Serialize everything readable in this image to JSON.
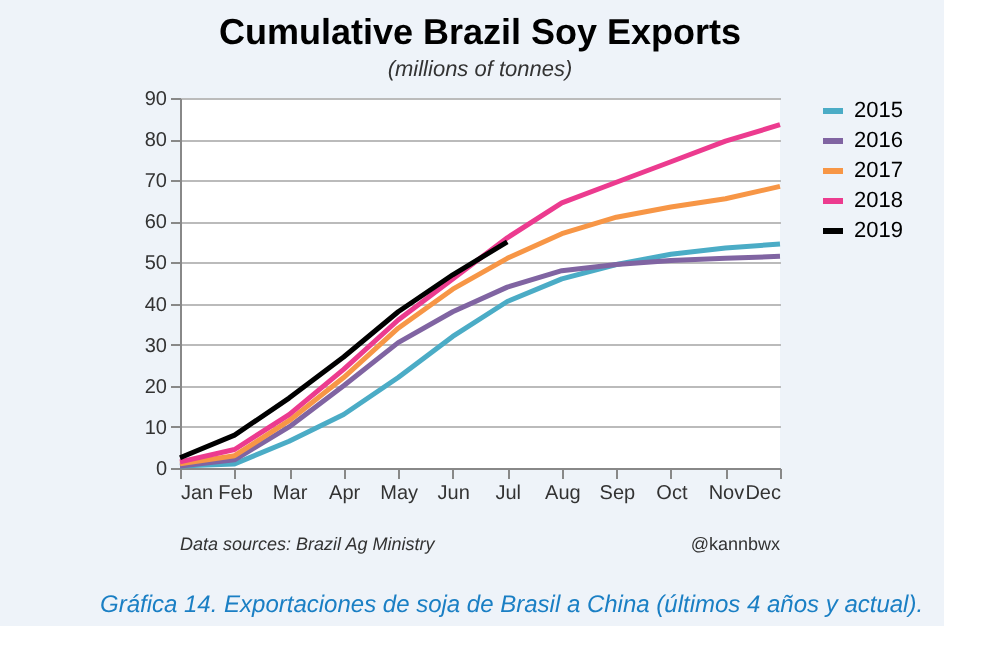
{
  "chart_data": {
    "type": "line",
    "title": "Cumulative Brazil Soy Exports",
    "subtitle": "(millions of tonnes)",
    "categories": [
      "Jan",
      "Feb",
      "Mar",
      "Apr",
      "May",
      "Jun",
      "Jul",
      "Aug",
      "Sep",
      "Oct",
      "Nov",
      "Dec"
    ],
    "series": [
      {
        "name": "2015",
        "color": "#4bacc6",
        "values": [
          0.5,
          1,
          6.5,
          13,
          22,
          32,
          40.5,
          46,
          49.5,
          52,
          53.5,
          54.5
        ]
      },
      {
        "name": "2016",
        "color": "#8064a2",
        "values": [
          0.5,
          2,
          10,
          20,
          30.5,
          38,
          44,
          48,
          49.5,
          50.5,
          51,
          51.5
        ]
      },
      {
        "name": "2017",
        "color": "#f79646",
        "values": [
          1,
          3,
          11.5,
          22,
          34,
          43.5,
          51,
          57,
          61,
          63.5,
          65.5,
          68.5
        ]
      },
      {
        "name": "2018",
        "color": "#ec3b8f",
        "values": [
          1.5,
          4.5,
          13,
          24,
          36,
          46,
          56,
          64.5,
          69.5,
          74.5,
          79.5,
          83.5
        ]
      },
      {
        "name": "2019",
        "color": "#000000",
        "values": [
          2.5,
          8,
          17,
          27,
          38,
          47,
          55,
          null,
          null,
          null,
          null,
          null
        ]
      }
    ],
    "ylim": [
      0,
      90
    ],
    "yticks": [
      0,
      10,
      20,
      30,
      40,
      50,
      60,
      70,
      80,
      90
    ],
    "grid": "y",
    "legend": "right",
    "marker": "none",
    "line_style": "solid",
    "annotations": [
      "Data sources: Brazil Ag Ministry",
      "@kannbwx",
      "Gráfica 14. Exportaciones de soja de Brasil a China (últimos 4 años y actual)."
    ]
  }
}
